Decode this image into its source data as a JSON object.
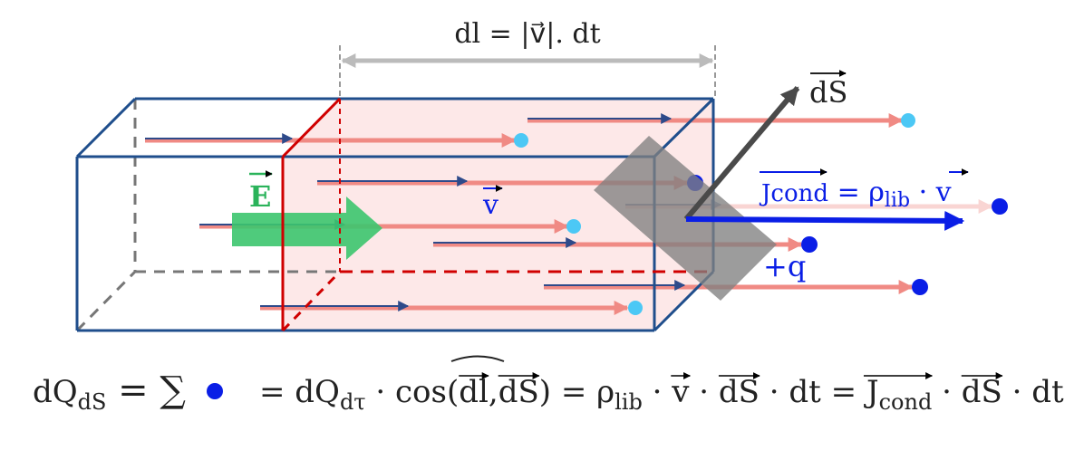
{
  "labels": {
    "dl": "dl = |v⃗|. dt",
    "dS": "dS",
    "E": "E",
    "v": "v",
    "J": "Jcond",
    "J_base": "J",
    "J_sub": "cond",
    "J_eq": " = ρ",
    "J_rho_sub": "lib",
    "J_dot": " · ",
    "J_v": "v",
    "charge": "+q"
  },
  "formula": {
    "lhs": "dQ",
    "lhs_sub": "dS",
    "eq1": " = ∑",
    "eq2": "= dQ",
    "dtau_sub": "dτ",
    "cos": " · cos(",
    "dl": "dl",
    "comma": ",",
    "dS1": "dS",
    "close": ") = ρ",
    "lib_sub": "lib",
    "dot_v": " · ",
    "v": "v",
    "dot_dS": " · ",
    "dS2": "dS",
    "dt_eq": " · dt = ",
    "J": "J",
    "cond_sub": "cond",
    "dot3": " · ",
    "dS3": "dS",
    "dt": " · dt"
  },
  "colors": {
    "box": "#1f4e8c",
    "region_edge": "#d00000",
    "region_fill": "#fde8e8",
    "velocity": "#f08a84",
    "drift_arrow": "#2e4a8a",
    "charge_dark": "#0a1ee6",
    "charge_light": "#4cc8f5",
    "field": "#3cc56e",
    "current": "#0a1ee6",
    "surface": "#808080",
    "normal": "#4a4a4a",
    "dim": "#bbbbbb"
  },
  "charges": [
    {
      "color": "light"
    },
    {
      "color": "light"
    },
    {
      "color": "dark"
    },
    {
      "color": "light"
    },
    {
      "color": "dark"
    },
    {
      "color": "dark"
    },
    {
      "color": "dark"
    },
    {
      "color": "light"
    }
  ]
}
